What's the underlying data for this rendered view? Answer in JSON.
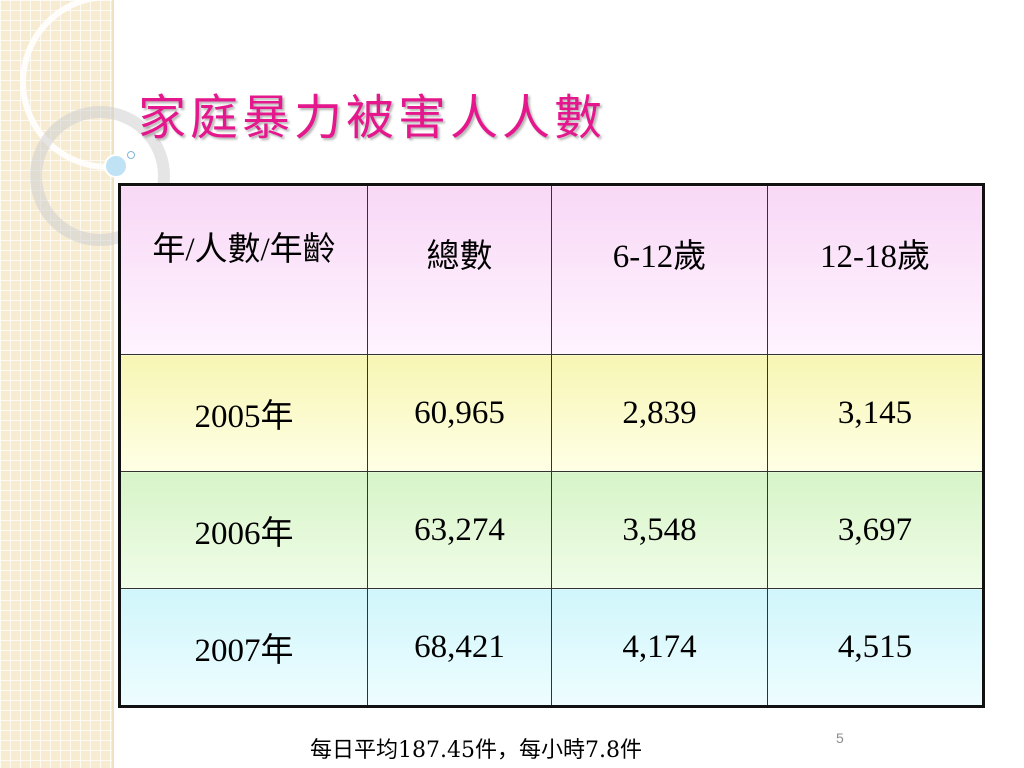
{
  "slide": {
    "title": "家庭暴力被害人人數",
    "page_number": "5",
    "note": "每日平均187.45件，每小時7.8件"
  },
  "table": {
    "headers": [
      "年/人數/年齡",
      "總數",
      "6-12歲",
      "12-18歲"
    ],
    "rows": [
      [
        "2005年",
        "60,965",
        "2,839",
        "3,145"
      ],
      [
        "2006年",
        "63,274",
        "3,548",
        "3,697"
      ],
      [
        "2007年",
        "68,421",
        "4,174",
        "4,515"
      ]
    ]
  }
}
